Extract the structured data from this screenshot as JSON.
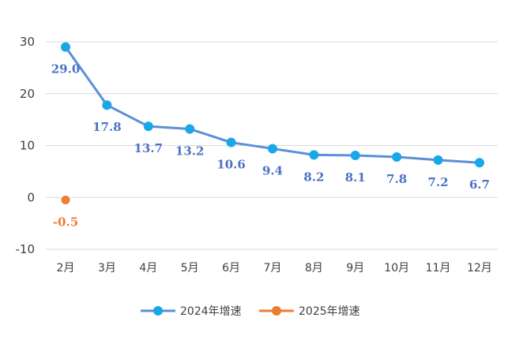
{
  "chart_data": {
    "type": "line",
    "title": "",
    "xlabel": "",
    "ylabel": "",
    "categories": [
      "2月",
      "3月",
      "4月",
      "5月",
      "6月",
      "7月",
      "8月",
      "9月",
      "10月",
      "11月",
      "12月"
    ],
    "ylim": [
      -10,
      30
    ],
    "yticks": [
      30,
      20,
      10,
      0,
      -10
    ],
    "grid": true,
    "legend_position": "bottom",
    "series": [
      {
        "name": "2024年增速",
        "color": "#5b8fd6",
        "marker_color": "#1aa7e8",
        "label_color": "#4a72c4",
        "values": [
          29.0,
          17.8,
          13.7,
          13.2,
          10.6,
          9.4,
          8.2,
          8.1,
          7.8,
          7.2,
          6.7
        ],
        "labels": [
          "29.0",
          "17.8",
          "13.7",
          "13.2",
          "10.6",
          "9.4",
          "8.2",
          "8.1",
          "7.8",
          "7.2",
          "6.7"
        ]
      },
      {
        "name": "2025年增速",
        "color": "#ed7d31",
        "marker_color": "#ed7d31",
        "label_color": "#ed7d31",
        "values": [
          -0.5,
          null,
          null,
          null,
          null,
          null,
          null,
          null,
          null,
          null,
          null
        ],
        "labels": [
          "-0.5",
          null,
          null,
          null,
          null,
          null,
          null,
          null,
          null,
          null,
          null
        ]
      }
    ]
  }
}
